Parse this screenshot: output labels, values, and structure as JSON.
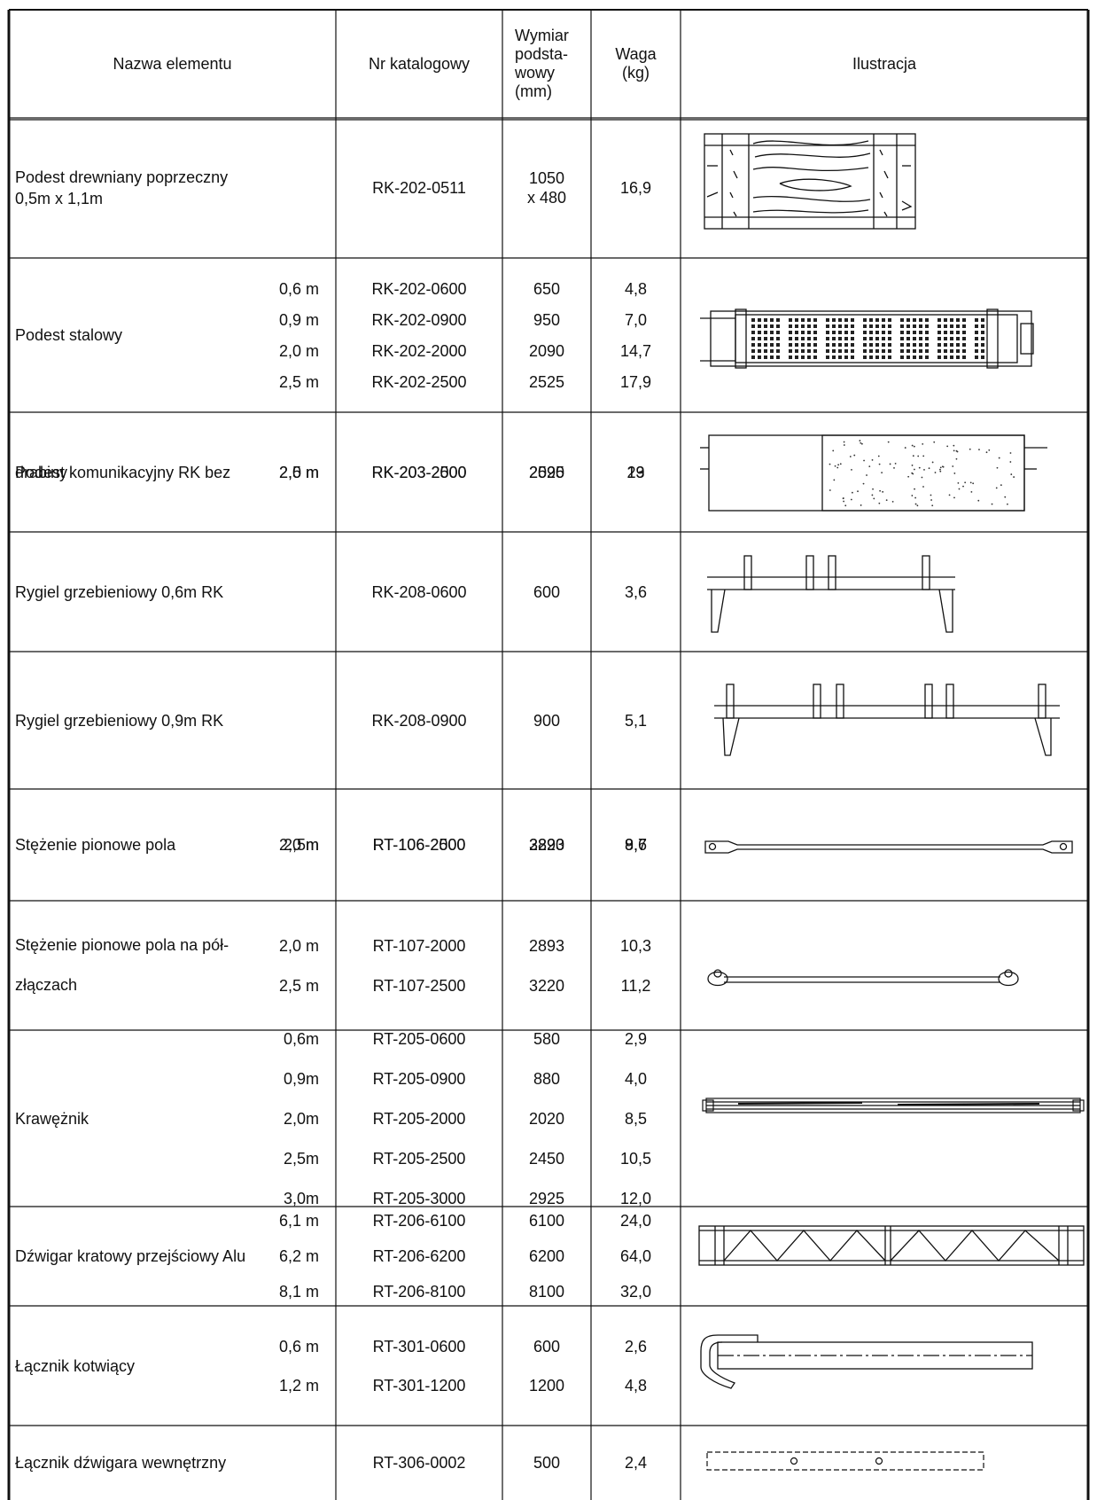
{
  "header": {
    "name": "Nazwa elementu",
    "catalog": "Nr katalogowy",
    "dimension": "Wymiar podsta- wowy (mm)",
    "dimension_lines": [
      "Wymiar",
      "podsta-",
      "wowy",
      "(mm)"
    ],
    "weight_lines": [
      "Waga",
      "(kg)"
    ],
    "illustration": "Ilustracja"
  },
  "rows": [
    {
      "name_lines": [
        "Podest drewniany poprzeczny",
        "0,5m x 1,1m"
      ],
      "items": [
        {
          "size": "",
          "catalog": "RK-202-0511",
          "dim": "1050 x 480",
          "dim_lines": [
            "1050",
            "x 480"
          ],
          "weight": "16,9"
        }
      ]
    },
    {
      "name_lines": [
        "Podest stalowy"
      ],
      "items": [
        {
          "size": "0,6 m",
          "catalog": "RK-202-0600",
          "dim": "650",
          "weight": "4,8"
        },
        {
          "size": "0,9 m",
          "catalog": "RK-202-0900",
          "dim": "950",
          "weight": "7,0"
        },
        {
          "size": "2,0 m",
          "catalog": "RK-202-2000",
          "dim": "2090",
          "weight": "14,7"
        },
        {
          "size": "2,5 m",
          "catalog": "RK-202-2500",
          "dim": "2525",
          "weight": "17,9"
        }
      ]
    },
    {
      "name_lines": [
        "Podest komunikacyjny RK bez",
        "drabiny"
      ],
      "items": [
        {
          "size": "2,0 m",
          "catalog": "RK-203-2000",
          "dim": "2090",
          "weight": "19"
        },
        {
          "size": "2,5 m",
          "catalog": "RK-203-2500",
          "dim": "2525",
          "weight": "23"
        }
      ]
    },
    {
      "name_lines": [
        "Rygiel grzebieniowy 0,6m RK"
      ],
      "items": [
        {
          "size": "",
          "catalog": "RK-208-0600",
          "dim": "600",
          "weight": "3,6"
        }
      ]
    },
    {
      "name_lines": [
        "Rygiel grzebieniowy 0,9m RK"
      ],
      "items": [
        {
          "size": "",
          "catalog": "RK-208-0900",
          "dim": "900",
          "weight": "5,1"
        }
      ]
    },
    {
      "name_lines": [
        "Stężenie pionowe pola"
      ],
      "items": [
        {
          "size": "2,0 m",
          "catalog": "RT-106-2000",
          "dim": "2893",
          "weight": "8,7"
        },
        {
          "size": "2,5m",
          "catalog": "RT-106-2500",
          "dim": "3220",
          "weight": "9,6"
        }
      ]
    },
    {
      "name_lines": [
        "Stężenie pionowe pola na pół-",
        "złączach"
      ],
      "items": [
        {
          "size": "2,0 m",
          "catalog": "RT-107-2000",
          "dim": "2893",
          "weight": "10,3"
        },
        {
          "size": "2,5 m",
          "catalog": "RT-107-2500",
          "dim": "3220",
          "weight": "11,2"
        }
      ]
    },
    {
      "name_lines": [
        "Krawężnik"
      ],
      "items": [
        {
          "size": "0,6m",
          "catalog": "RT-205-0600",
          "dim": "580",
          "weight": "2,9"
        },
        {
          "size": "0,9m",
          "catalog": "RT-205-0900",
          "dim": "880",
          "weight": "4,0"
        },
        {
          "size": "2,0m",
          "catalog": "RT-205-2000",
          "dim": "2020",
          "weight": "8,5"
        },
        {
          "size": "2,5m",
          "catalog": "RT-205-2500",
          "dim": "2450",
          "weight": "10,5"
        },
        {
          "size": "3,0m",
          "catalog": "RT-205-3000",
          "dim": "2925",
          "weight": "12,0"
        }
      ]
    },
    {
      "name_lines": [
        "Dźwigar kratowy przejściowy Alu"
      ],
      "items": [
        {
          "size": "6,1 m",
          "catalog": "RT-206-6100",
          "dim": "6100",
          "weight": "24,0"
        },
        {
          "size": "6,2 m",
          "catalog": "RT-206-6200",
          "dim": "6200",
          "weight": "64,0"
        },
        {
          "size": "8,1 m",
          "catalog": "RT-206-8100",
          "dim": "8100",
          "weight": "32,0"
        }
      ]
    },
    {
      "name_lines": [
        "Łącznik kotwiący"
      ],
      "items": [
        {
          "size": "0,6 m",
          "catalog": "RT-301-0600",
          "dim": "600",
          "weight": "2,6"
        },
        {
          "size": "1,2 m",
          "catalog": "RT-301-1200",
          "dim": "1200",
          "weight": "4,8"
        }
      ]
    },
    {
      "name_lines": [
        "Łącznik dźwigara wewnętrzny"
      ],
      "items": [
        {
          "size": "",
          "catalog": "RT-306-0002",
          "dim": "500",
          "weight": "2,4"
        }
      ]
    }
  ]
}
